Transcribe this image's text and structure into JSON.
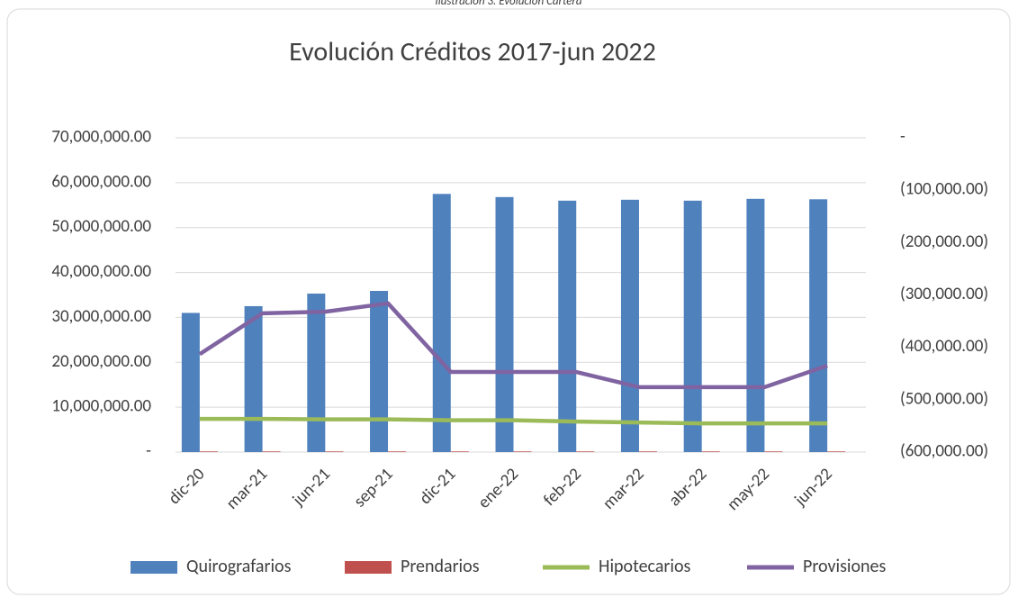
{
  "caption": "Ilustración 3. Evolución Cartera",
  "chart_data": {
    "type": "bar",
    "title": "Evolución Créditos 2017-jun 2022",
    "categories": [
      "dic-20",
      "mar-21",
      "jun-21",
      "sep-21",
      "dic-21",
      "ene-22",
      "feb-22",
      "mar-22",
      "abr-22",
      "may-22",
      "jun-22"
    ],
    "series": [
      {
        "name": "Quirografarios",
        "type": "bar",
        "color": "#4f81bd",
        "values": [
          31000000,
          32500000,
          35300000,
          35900000,
          57500000,
          56800000,
          56000000,
          56200000,
          56000000,
          56400000,
          56300000
        ]
      },
      {
        "name": "Prendarios",
        "type": "bar",
        "color": "#c0504d",
        "values": [
          150000,
          150000,
          150000,
          150000,
          150000,
          150000,
          150000,
          150000,
          150000,
          150000,
          150000
        ]
      },
      {
        "name": "Hipotecarios",
        "type": "line",
        "color": "#9bbb59",
        "values": [
          7400000,
          7400000,
          7300000,
          7300000,
          7100000,
          7100000,
          6800000,
          6600000,
          6400000,
          6400000,
          6400000
        ]
      },
      {
        "name": "Provisiones",
        "type": "line",
        "axis": "y2",
        "color": "#8064a2",
        "values": [
          -413000,
          -335000,
          -332000,
          -316000,
          -447000,
          -447000,
          -447000,
          -476000,
          -476000,
          -476000,
          -435000
        ]
      }
    ],
    "ylim": [
      0,
      70000000
    ],
    "yticks": [
      {
        "value": 0,
        "label": "-"
      },
      {
        "value": 10000000,
        "label": "10,000,000.00"
      },
      {
        "value": 20000000,
        "label": "20,000,000.00"
      },
      {
        "value": 30000000,
        "label": "30,000,000.00"
      },
      {
        "value": 40000000,
        "label": "40,000,000.00"
      },
      {
        "value": 50000000,
        "label": "50,000,000.00"
      },
      {
        "value": 60000000,
        "label": "60,000,000.00"
      },
      {
        "value": 70000000,
        "label": "70,000,000.00"
      }
    ],
    "y2lim": [
      -600000,
      0
    ],
    "y2ticks": [
      {
        "value": -600000,
        "label": "(600,000.00)"
      },
      {
        "value": -500000,
        "label": "(500,000.00)"
      },
      {
        "value": -400000,
        "label": "(400,000.00)"
      },
      {
        "value": -300000,
        "label": "(300,000.00)"
      },
      {
        "value": -200000,
        "label": "(200,000.00)"
      },
      {
        "value": -100000,
        "label": "(100,000.00)"
      },
      {
        "value": 0,
        "label": "-"
      }
    ],
    "grid": true,
    "legend": "bottom"
  }
}
